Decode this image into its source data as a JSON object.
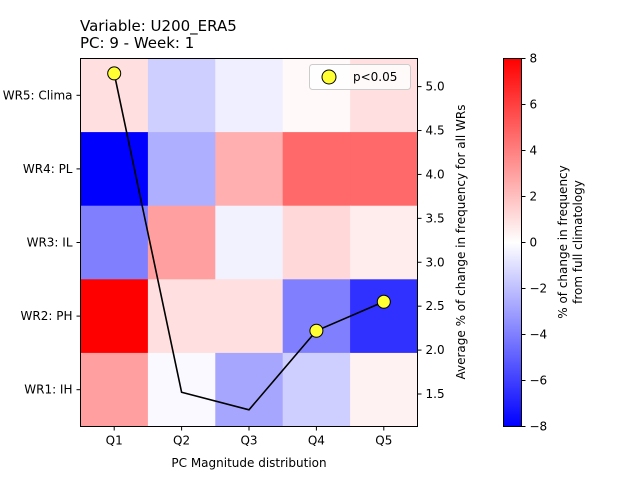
{
  "chart_data": {
    "type": "heatmap",
    "title_line1": "Variable: U200_ERA5",
    "title_line2": "PC: 9 - Week: 1",
    "xlabel": "PC Magnitude distribution",
    "ylabel_right": "Average % of change in frequency for all WRs",
    "categories_x": [
      "Q1",
      "Q2",
      "Q3",
      "Q4",
      "Q5"
    ],
    "categories_y": [
      "WR5: Clima",
      "WR4: PL",
      "WR3: IL",
      "WR2: PH",
      "WR1: IH"
    ],
    "heatmap_values": [
      [
        1.0,
        -1.5,
        -0.5,
        0.2,
        1.0
      ],
      [
        -8.0,
        -2.5,
        2.5,
        4.7,
        4.7
      ],
      [
        -4.0,
        3.0,
        -0.4,
        1.2,
        0.6
      ],
      [
        8.0,
        1.0,
        1.0,
        -4.0,
        -6.5
      ],
      [
        3.0,
        -0.2,
        -2.8,
        -1.5,
        0.4
      ]
    ],
    "colorbar": {
      "label_line1": "% of change in frequency",
      "label_line2": "from full climatology",
      "range": [
        -8,
        8
      ],
      "ticks": [
        "8",
        "6",
        "4",
        "2",
        "0",
        "−2",
        "−4",
        "−6",
        "−8"
      ]
    },
    "line_series": {
      "x": [
        "Q1",
        "Q2",
        "Q3",
        "Q4",
        "Q5"
      ],
      "y": [
        5.15,
        1.52,
        1.32,
        2.22,
        2.55
      ],
      "significant": [
        true,
        false,
        false,
        true,
        true
      ]
    },
    "right_axis": {
      "range": [
        1.13,
        5.32
      ],
      "ticks": [
        "5.0",
        "4.5",
        "4.0",
        "3.5",
        "3.0",
        "2.5",
        "2.0",
        "1.5"
      ]
    },
    "legend": {
      "label": "p<0.05",
      "position": "top-right"
    },
    "colors": {
      "significant_marker": "#ffff33",
      "line": "#000000"
    }
  }
}
